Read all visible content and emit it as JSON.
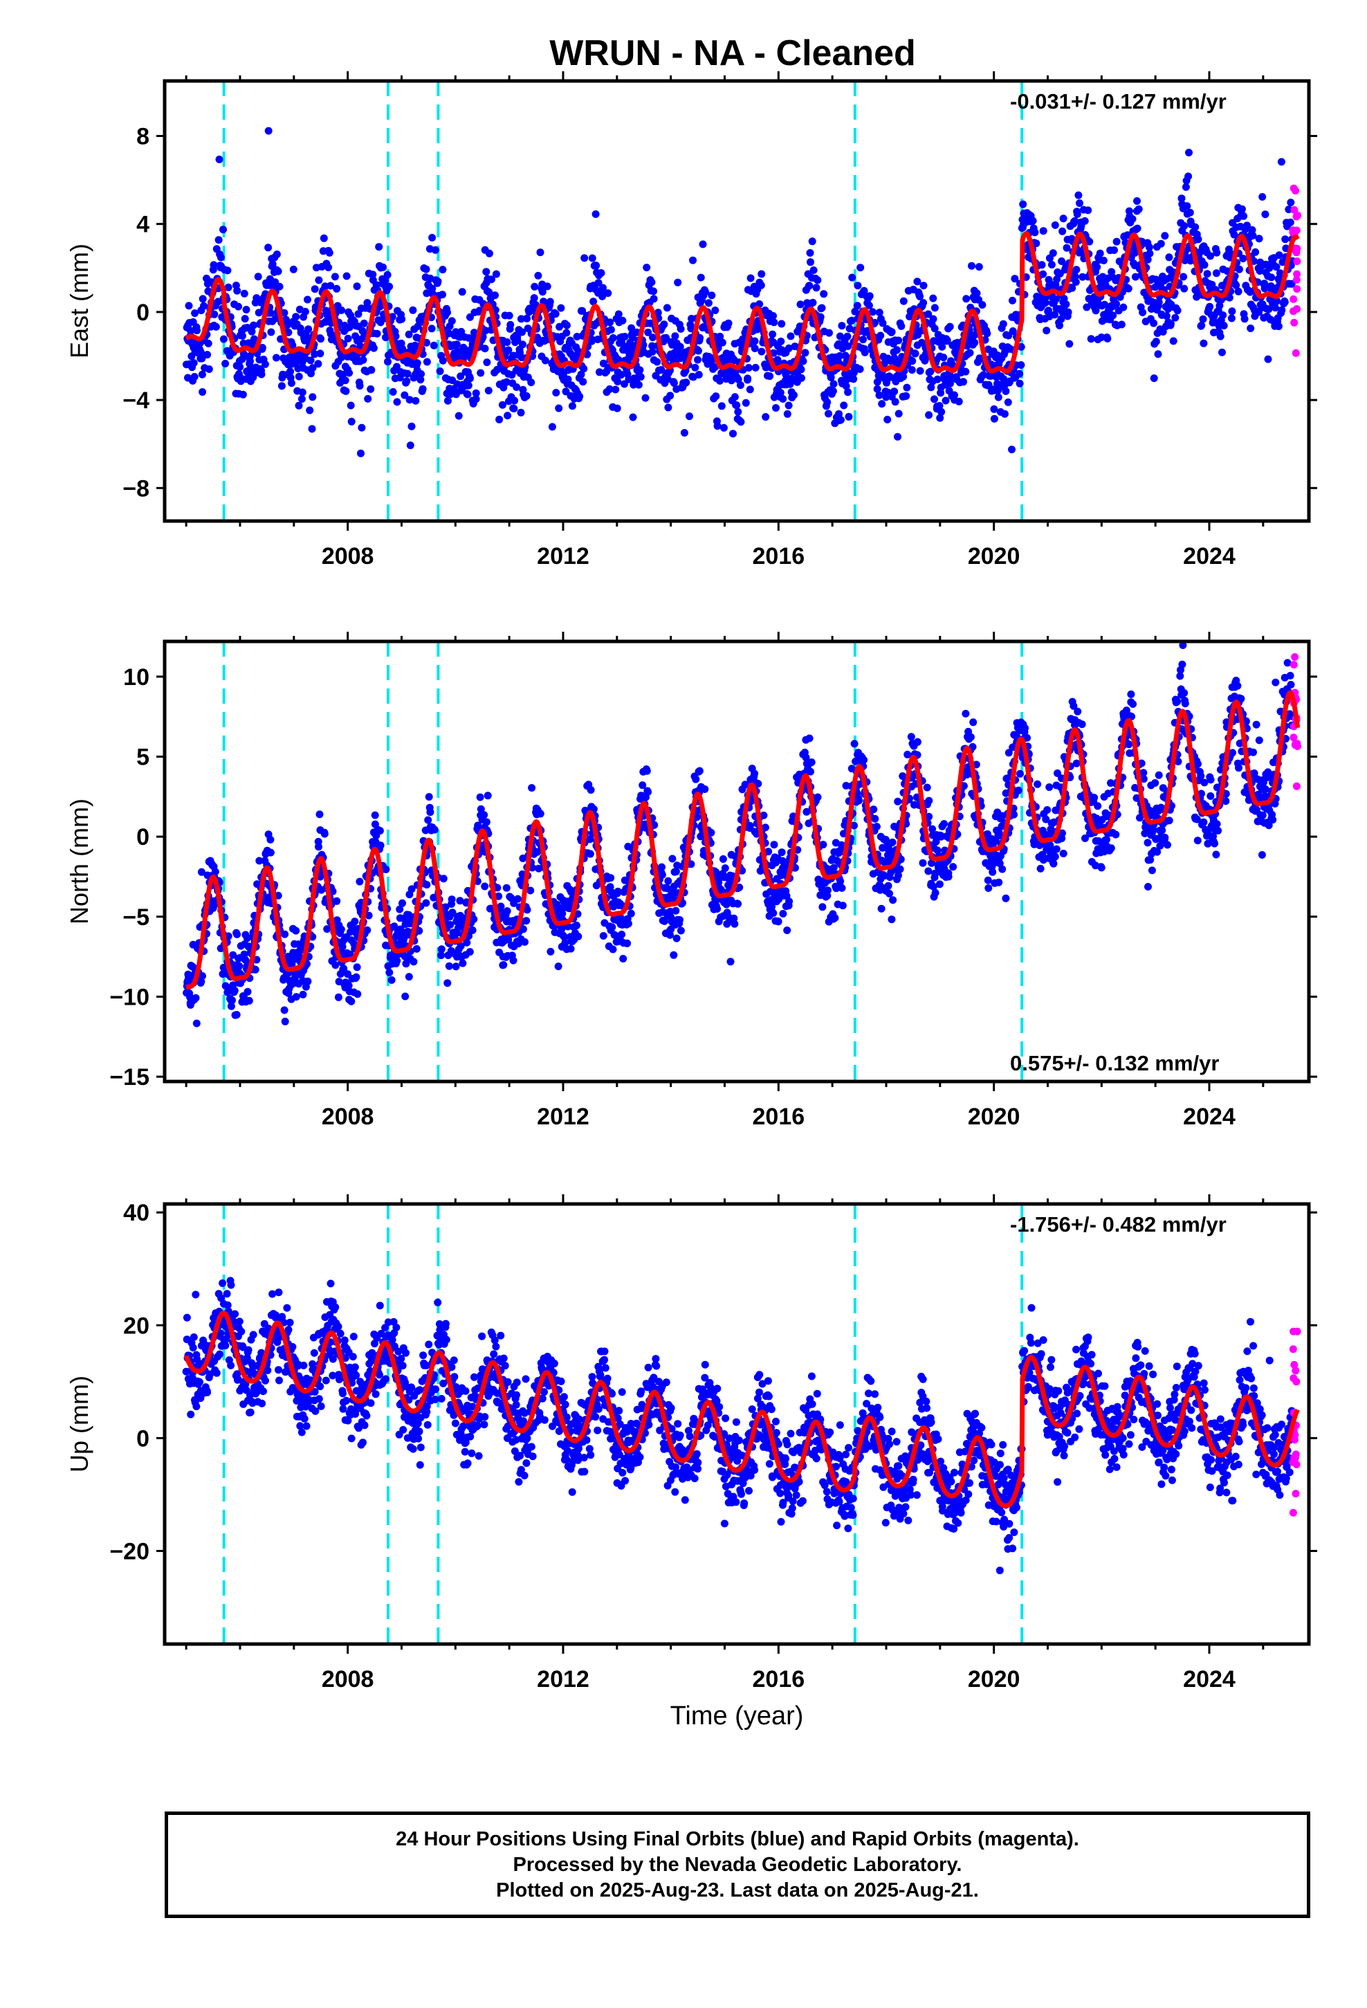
{
  "title": "WRUN  - NA - Cleaned",
  "footer": {
    "line1": "24 Hour Positions Using Final Orbits (blue) and Rapid Orbits (magenta).",
    "line2": "Processed by the Nevada Geodetic Laboratory.",
    "line3": "Plotted on 2025-Aug-23. Last data on 2025-Aug-21."
  },
  "colors": {
    "final_orbits": "#0000ff",
    "rapid_orbits": "#ff00ff",
    "model": "#ff0000",
    "events": "#00e5ee"
  },
  "chart_data": [
    {
      "type": "scatter",
      "panel": "east",
      "ylabel": "East (mm)",
      "xlabel": "",
      "xlim": [
        2004.6,
        2025.85
      ],
      "ylim": [
        -9.5,
        10.5
      ],
      "xticks": [
        2008,
        2012,
        2016,
        2020,
        2024
      ],
      "xtick_labels": [
        "2008",
        "2012",
        "2016",
        "2020",
        "2024"
      ],
      "yticks": [
        -8,
        -4,
        0,
        4,
        8
      ],
      "ytick_labels": [
        "−8",
        "−4",
        "0",
        "4",
        "8"
      ],
      "annotation": "-0.031+/- 0.127 mm/yr",
      "annotation_position": "top-right",
      "data_start": 2005.0,
      "data_end": 2025.64,
      "rapid_start": 2025.55,
      "event_lines": [
        2005.7,
        2008.75,
        2009.68,
        2017.42,
        2020.52
      ],
      "model": {
        "offset": -0.3,
        "trend": -0.031,
        "annual_amp": 1.3,
        "annual_peak": 0.6,
        "semiannual_amp": 0.5,
        "steps": [
          {
            "t": 2005.7,
            "dy": -0.5
          },
          {
            "t": 2008.75,
            "dy": -0.2
          },
          {
            "t": 2009.68,
            "dy": -0.3
          },
          {
            "t": 2020.52,
            "dy": 3.55
          }
        ]
      },
      "scatter": {
        "noise": 1.15,
        "count": 2600,
        "rapid_count": 22,
        "rapid_noise": 2.2
      }
    },
    {
      "type": "scatter",
      "panel": "north",
      "ylabel": "North (mm)",
      "xlabel": "",
      "xlim": [
        2004.6,
        2025.85
      ],
      "ylim": [
        -15.3,
        12.2
      ],
      "xticks": [
        2008,
        2012,
        2016,
        2020,
        2024
      ],
      "xtick_labels": [
        "2008",
        "2012",
        "2016",
        "2020",
        "2024"
      ],
      "yticks": [
        -15,
        -10,
        -5,
        0,
        5,
        10
      ],
      "ytick_labels": [
        "−15",
        "−10",
        "−5",
        "0",
        "5",
        "10"
      ],
      "annotation": "0.575+/- 0.132 mm/yr",
      "annotation_position": "bottom-right",
      "data_start": 2005.0,
      "data_end": 2025.64,
      "rapid_start": 2025.55,
      "event_lines": [
        2005.7,
        2008.75,
        2009.68,
        2017.42,
        2020.52
      ],
      "model": {
        "offset": -7.0,
        "trend": 0.575,
        "annual_amp": 3.3,
        "annual_peak": 0.5,
        "semiannual_amp": 0.9,
        "steps": []
      },
      "scatter": {
        "noise": 1.25,
        "count": 2600,
        "rapid_count": 22,
        "rapid_noise": 2.3
      }
    },
    {
      "type": "scatter",
      "panel": "up",
      "ylabel": "Up (mm)",
      "xlabel": "Time (year)",
      "xlim": [
        2004.6,
        2025.85
      ],
      "ylim": [
        -36.5,
        41.5
      ],
      "xticks": [
        2008,
        2012,
        2016,
        2020,
        2024
      ],
      "xtick_labels": [
        "2008",
        "2012",
        "2016",
        "2020",
        "2024"
      ],
      "yticks": [
        -20,
        0,
        20,
        40
      ],
      "ytick_labels": [
        "−20",
        "0",
        "20",
        "40"
      ],
      "annotation": "-1.756+/- 0.482 mm/yr",
      "annotation_position": "top-right",
      "data_start": 2005.0,
      "data_end": 2025.64,
      "rapid_start": 2025.55,
      "event_lines": [
        2005.7,
        2008.75,
        2009.68,
        2017.42,
        2020.52
      ],
      "model": {
        "offset": 17.0,
        "trend": -1.756,
        "annual_amp": 5.6,
        "annual_peak": 0.7,
        "semiannual_amp": 0.8,
        "steps": [
          {
            "t": 2017.42,
            "dy": 2.5
          },
          {
            "t": 2020.52,
            "dy": 16.0
          }
        ]
      },
      "scatter": {
        "noise": 3.6,
        "count": 2600,
        "rapid_count": 22,
        "rapid_noise": 8.0
      }
    }
  ]
}
